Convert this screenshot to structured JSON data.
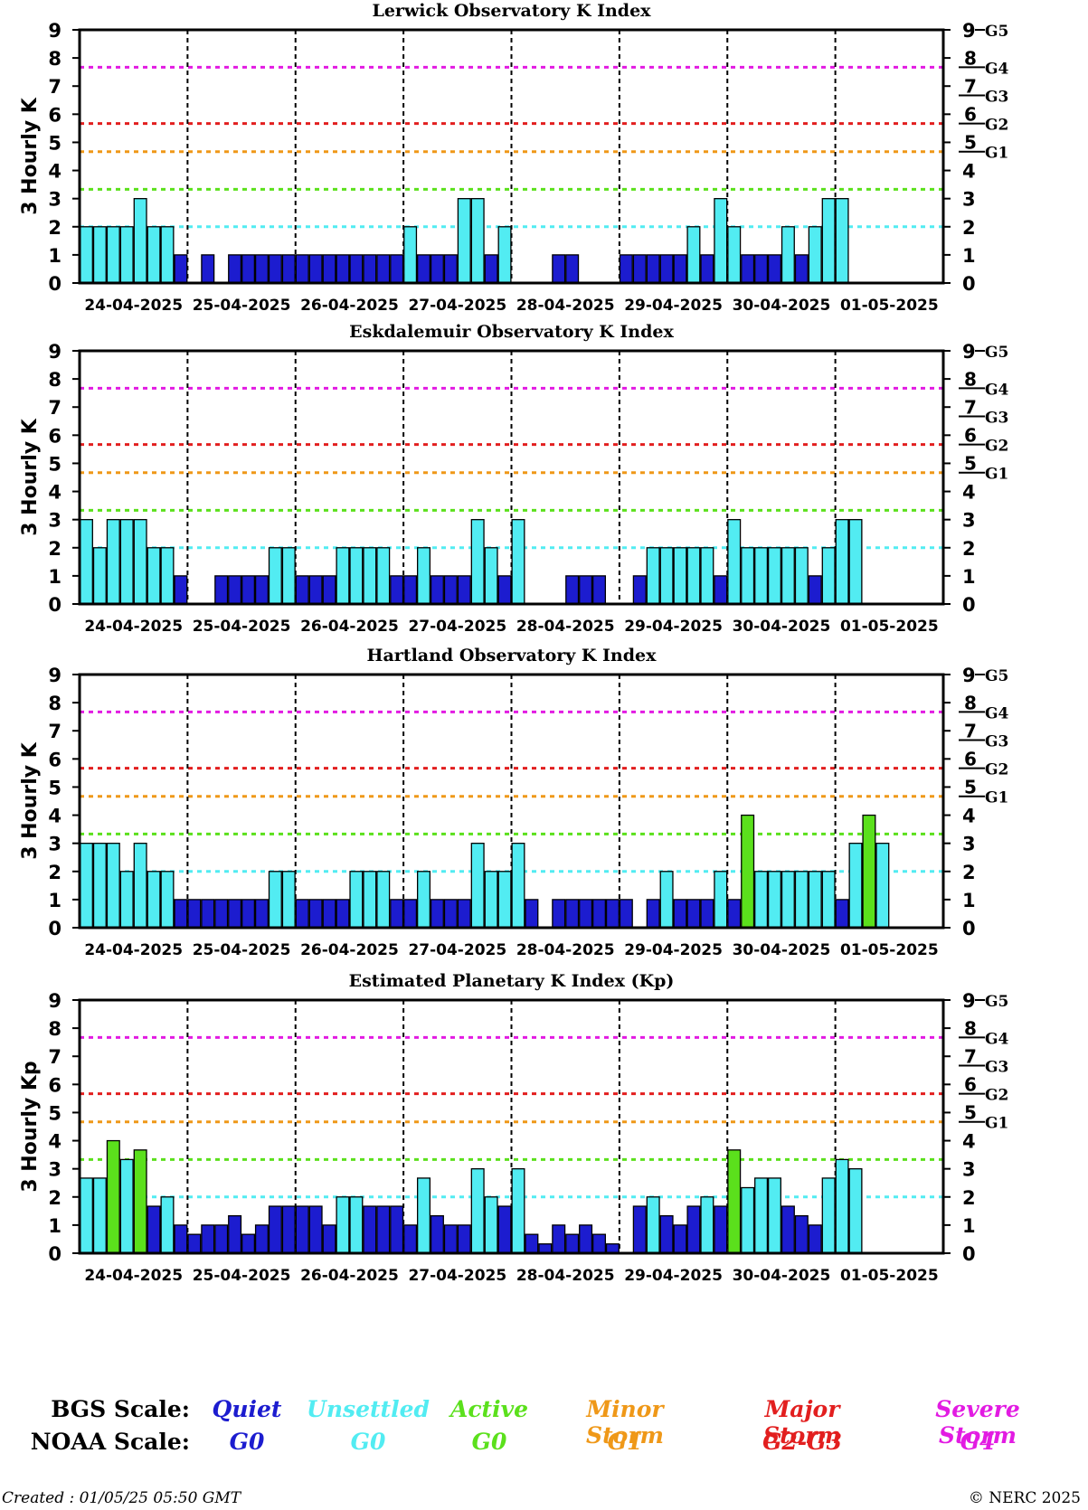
{
  "colors": {
    "quiet": "#1c1ccf",
    "unsettled": "#52ecf2",
    "active": "#5be01c",
    "minor_storm": "#ef9818",
    "major_storm": "#e21f1f",
    "severe_storm": "#e21be2",
    "unsettled_line": "#52ecf2",
    "active_line": "#5be01c"
  },
  "chart_data": [
    {
      "type": "bar",
      "title": "Lerwick Observatory K Index",
      "ylabel": "3 Hourly K",
      "ylim": [
        0,
        9
      ],
      "yticks": [
        "0",
        "1",
        "2",
        "3",
        "4",
        "5",
        "6",
        "7",
        "8",
        "9"
      ],
      "right_ticks": [
        "0",
        "1",
        "2",
        "3",
        "4",
        "5",
        "6",
        "7",
        "8",
        "9"
      ],
      "noaa_marks": [
        "G1",
        "G2",
        "G3",
        "G4",
        "G5"
      ],
      "xtick_labels": [
        "24-04-2025",
        "25-04-2025",
        "26-04-2025",
        "27-04-2025",
        "28-04-2025",
        "29-04-2025",
        "30-04-2025",
        "01-05-2025"
      ],
      "threshold_lines": [
        2,
        3.33,
        4.67,
        5.67,
        7.67
      ],
      "interval_hours": 3,
      "values": [
        2,
        2,
        2,
        2,
        3,
        2,
        2,
        1,
        0,
        1,
        0,
        1,
        1,
        1,
        1,
        1,
        1,
        1,
        1,
        1,
        1,
        1,
        1,
        1,
        2,
        1,
        1,
        1,
        3,
        3,
        1,
        2,
        0,
        0,
        0,
        1,
        1,
        0,
        0,
        0,
        1,
        1,
        1,
        1,
        1,
        2,
        1,
        3,
        2,
        1,
        1,
        1,
        2,
        1,
        2,
        3,
        3
      ]
    },
    {
      "type": "bar",
      "title": "Eskdalemuir Observatory K Index",
      "ylabel": "3 Hourly K",
      "ylim": [
        0,
        9
      ],
      "yticks": [
        "0",
        "1",
        "2",
        "3",
        "4",
        "5",
        "6",
        "7",
        "8",
        "9"
      ],
      "right_ticks": [
        "0",
        "1",
        "2",
        "3",
        "4",
        "5",
        "6",
        "7",
        "8",
        "9"
      ],
      "noaa_marks": [
        "G1",
        "G2",
        "G3",
        "G4",
        "G5"
      ],
      "xtick_labels": [
        "24-04-2025",
        "25-04-2025",
        "26-04-2025",
        "27-04-2025",
        "28-04-2025",
        "29-04-2025",
        "30-04-2025",
        "01-05-2025"
      ],
      "threshold_lines": [
        2,
        3.33,
        4.67,
        5.67,
        7.67
      ],
      "interval_hours": 3,
      "values": [
        3,
        2,
        3,
        3,
        3,
        2,
        2,
        1,
        0,
        0,
        1,
        1,
        1,
        1,
        2,
        2,
        1,
        1,
        1,
        2,
        2,
        2,
        2,
        1,
        1,
        2,
        1,
        1,
        1,
        3,
        2,
        1,
        3,
        0,
        0,
        0,
        1,
        1,
        1,
        0,
        0,
        1,
        2,
        2,
        2,
        2,
        2,
        1,
        3,
        2,
        2,
        2,
        2,
        2,
        1,
        2,
        3,
        3
      ]
    },
    {
      "type": "bar",
      "title": "Hartland Observatory K Index",
      "ylabel": "3 Hourly K",
      "ylim": [
        0,
        9
      ],
      "yticks": [
        "0",
        "1",
        "2",
        "3",
        "4",
        "5",
        "6",
        "7",
        "8",
        "9"
      ],
      "right_ticks": [
        "0",
        "1",
        "2",
        "3",
        "4",
        "5",
        "6",
        "7",
        "8",
        "9"
      ],
      "noaa_marks": [
        "G1",
        "G2",
        "G3",
        "G4",
        "G5"
      ],
      "xtick_labels": [
        "24-04-2025",
        "25-04-2025",
        "26-04-2025",
        "27-04-2025",
        "28-04-2025",
        "29-04-2025",
        "30-04-2025",
        "01-05-2025"
      ],
      "threshold_lines": [
        2,
        3.33,
        4.67,
        5.67,
        7.67
      ],
      "interval_hours": 3,
      "values": [
        3,
        3,
        3,
        2,
        3,
        2,
        2,
        1,
        1,
        1,
        1,
        1,
        1,
        1,
        2,
        2,
        1,
        1,
        1,
        1,
        2,
        2,
        2,
        1,
        1,
        2,
        1,
        1,
        1,
        3,
        2,
        2,
        3,
        1,
        0,
        1,
        1,
        1,
        1,
        1,
        1,
        0,
        1,
        2,
        1,
        1,
        1,
        2,
        1,
        4,
        2,
        2,
        2,
        2,
        2,
        2,
        1,
        3,
        4,
        3
      ]
    },
    {
      "type": "bar",
      "title": "Estimated Planetary K Index (Kp)",
      "ylabel": "3 Hourly Kp",
      "ylim": [
        0,
        9
      ],
      "yticks": [
        "0",
        "1",
        "2",
        "3",
        "4",
        "5",
        "6",
        "7",
        "8",
        "9"
      ],
      "right_ticks": [
        "0",
        "1",
        "2",
        "3",
        "4",
        "5",
        "6",
        "7",
        "8",
        "9"
      ],
      "noaa_marks": [
        "G1",
        "G2",
        "G3",
        "G4",
        "G5"
      ],
      "xtick_labels": [
        "24-04-2025",
        "25-04-2025",
        "26-04-2025",
        "27-04-2025",
        "28-04-2025",
        "29-04-2025",
        "30-04-2025",
        "01-05-2025"
      ],
      "threshold_lines": [
        2,
        3.33,
        4.67,
        5.67,
        7.67
      ],
      "interval_hours": 3,
      "values": [
        2.67,
        2.67,
        4,
        3.33,
        3.67,
        1.67,
        2,
        1,
        0.67,
        1,
        1,
        1.33,
        0.67,
        1,
        1.67,
        1.67,
        1.67,
        1.67,
        1,
        2,
        2,
        1.67,
        1.67,
        1.67,
        1,
        2.67,
        1.33,
        1,
        1,
        3,
        2,
        1.67,
        3,
        0.67,
        0.33,
        1,
        0.67,
        1,
        0.67,
        0.33,
        0,
        1.67,
        2,
        1.33,
        1,
        1.67,
        2,
        1.67,
        3.67,
        2.33,
        2.67,
        2.67,
        1.67,
        1.33,
        1,
        2.67,
        3.33,
        3
      ]
    }
  ],
  "legend": {
    "bgs_label": "BGS Scale:",
    "noaa_label": "NOAA Scale:",
    "items": [
      {
        "bgs": "Quiet",
        "noaa": "G0",
        "color": "#1c1ccf"
      },
      {
        "bgs": "Unsettled",
        "noaa": "G0",
        "color": "#52ecf2"
      },
      {
        "bgs": "Active",
        "noaa": "G0",
        "color": "#5be01c"
      },
      {
        "bgs": "Minor Storm",
        "noaa": "G1",
        "color": "#ef9818"
      },
      {
        "bgs": "Major Storm",
        "noaa": "G2-G3",
        "color": "#e21f1f"
      },
      {
        "bgs": "Severe Storm",
        "noaa": "G4",
        "color": "#e21be2"
      }
    ]
  },
  "footer": {
    "created": "Created : 01/05/25 05:50 GMT",
    "copyright": "© NERC 2025"
  }
}
